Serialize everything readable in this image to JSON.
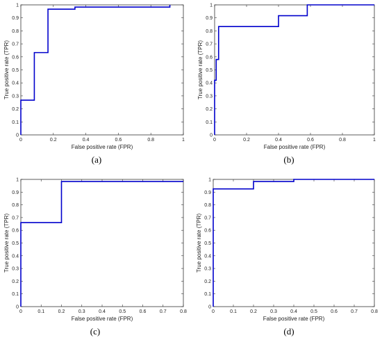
{
  "panels": [
    {
      "caption": "(a)",
      "chart_data": {
        "type": "line",
        "xlabel": "False positive rate (FPR)",
        "ylabel": "True positive rate (TPR)",
        "xlim": [
          0,
          1
        ],
        "ylim": [
          0,
          1
        ],
        "xticks": [
          "0",
          "0.2",
          "0.4",
          "0.6",
          "0.8",
          "1"
        ],
        "yticks": [
          "0",
          "0.1",
          "0.2",
          "0.3",
          "0.4",
          "0.5",
          "0.6",
          "0.7",
          "0.8",
          "0.9",
          "1"
        ],
        "grid": false,
        "series": [
          {
            "color": "#0000cc",
            "x": [
              0,
              0,
              0.083,
              0.083,
              0.167,
              0.167,
              0.333,
              0.333,
              0.917,
              0.917
            ],
            "y": [
              0,
              0.267,
              0.267,
              0.633,
              0.633,
              0.967,
              0.967,
              0.983,
              0.983,
              1.0
            ]
          }
        ]
      }
    },
    {
      "caption": "(b)",
      "chart_data": {
        "type": "line",
        "xlabel": "False positive rate (FPR)",
        "ylabel": "True positive rate (TPR)",
        "xlim": [
          0,
          1
        ],
        "ylim": [
          0,
          1
        ],
        "xticks": [
          "0",
          "0.2",
          "0.4",
          "0.6",
          "0.8",
          "1"
        ],
        "yticks": [
          "0",
          "0.1",
          "0.2",
          "0.3",
          "0.4",
          "0.5",
          "0.6",
          "0.7",
          "0.8",
          "0.9",
          "1"
        ],
        "grid": false,
        "series": [
          {
            "color": "#0000cc",
            "x": [
              0,
              0,
              0.01,
              0.01,
              0.025,
              0.025,
              0.4,
              0.4,
              0.58,
              0.58,
              1.0
            ],
            "y": [
              0,
              0.42,
              0.42,
              0.58,
              0.58,
              0.833,
              0.833,
              0.917,
              0.917,
              1.0,
              1.0
            ]
          }
        ]
      }
    },
    {
      "caption": "(c)",
      "chart_data": {
        "type": "line",
        "xlabel": "False positive rate (FPR)",
        "ylabel": "True positive rate (TPR)",
        "xlim": [
          0,
          0.8
        ],
        "ylim": [
          0,
          1
        ],
        "xticks": [
          "0",
          "0.1",
          "0.2",
          "0.3",
          "0.4",
          "0.5",
          "0.6",
          "0.7",
          "0.8"
        ],
        "yticks": [
          "0",
          "0.1",
          "0.2",
          "0.3",
          "0.4",
          "0.5",
          "0.6",
          "0.7",
          "0.8",
          "0.9",
          "1"
        ],
        "grid": false,
        "series": [
          {
            "color": "#0000cc",
            "x": [
              0,
              0,
              0.2,
              0.2,
              0.8
            ],
            "y": [
              0,
              0.66,
              0.66,
              0.983,
              0.983
            ]
          }
        ]
      }
    },
    {
      "caption": "(d)",
      "chart_data": {
        "type": "line",
        "xlabel": "False positive rate (FPR)",
        "ylabel": "True positive rate (TPR)",
        "xlim": [
          0,
          0.8
        ],
        "ylim": [
          0,
          1
        ],
        "xticks": [
          "0",
          "0.1",
          "0.2",
          "0.3",
          "0.4",
          "0.5",
          "0.6",
          "0.7",
          "0.8"
        ],
        "yticks": [
          "0",
          "0.1",
          "0.2",
          "0.3",
          "0.4",
          "0.5",
          "0.6",
          "0.7",
          "0.8",
          "0.9",
          "1"
        ],
        "grid": false,
        "series": [
          {
            "color": "#0000cc",
            "x": [
              0,
              0,
              0.2,
              0.2,
              0.4,
              0.4,
              0.8
            ],
            "y": [
              0,
              0.925,
              0.925,
              0.983,
              0.983,
              1.0,
              1.0
            ]
          }
        ]
      }
    }
  ]
}
